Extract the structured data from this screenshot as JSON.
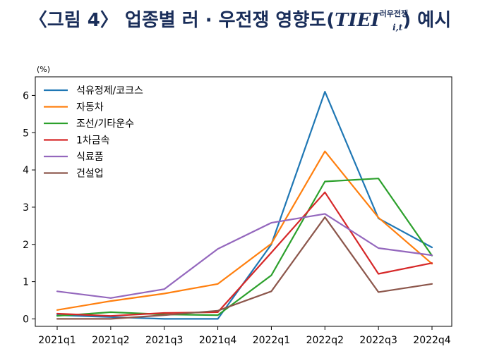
{
  "title": {
    "prefix": "〈그림 4〉 업종별 러 · 우전쟁 영향도(",
    "math": "TIEI",
    "superscript": "러우전쟁",
    "subscript": "i,t",
    "suffix": ") 예시"
  },
  "chart_data": {
    "type": "line",
    "title": "",
    "ylabel": "(%)",
    "xlabel": "",
    "categories": [
      "2021q1",
      "2021q2",
      "2021q3",
      "2021q4",
      "2022q1",
      "2022q2",
      "2022q3",
      "2022q4"
    ],
    "ylim": [
      -0.2,
      6.5
    ],
    "yticks": [
      0,
      1,
      2,
      3,
      4,
      5,
      6
    ],
    "grid": false,
    "legend": "top-left",
    "series": [
      {
        "name": "석유정제/코크스",
        "color": "#1f77b4",
        "values": [
          0.1,
          0.05,
          0.0,
          0.0,
          2.0,
          6.1,
          2.7,
          1.92
        ]
      },
      {
        "name": "자동차",
        "color": "#ff7f0e",
        "values": [
          0.24,
          0.48,
          0.68,
          0.94,
          2.02,
          4.5,
          2.72,
          1.48
        ]
      },
      {
        "name": "조선/기타운수",
        "color": "#2ca02c",
        "values": [
          0.08,
          0.18,
          0.12,
          0.1,
          1.17,
          3.69,
          3.77,
          1.7
        ]
      },
      {
        "name": "1차금속",
        "color": "#d62728",
        "values": [
          0.14,
          0.08,
          0.16,
          0.18,
          1.78,
          3.4,
          1.21,
          1.5
        ]
      },
      {
        "name": "식료품",
        "color": "#9467bd",
        "values": [
          0.74,
          0.56,
          0.8,
          1.88,
          2.58,
          2.82,
          1.9,
          1.71
        ]
      },
      {
        "name": "건설업",
        "color": "#8c564b",
        "values": [
          0.0,
          0.0,
          0.1,
          0.22,
          0.74,
          2.73,
          0.72,
          0.94
        ]
      }
    ]
  }
}
